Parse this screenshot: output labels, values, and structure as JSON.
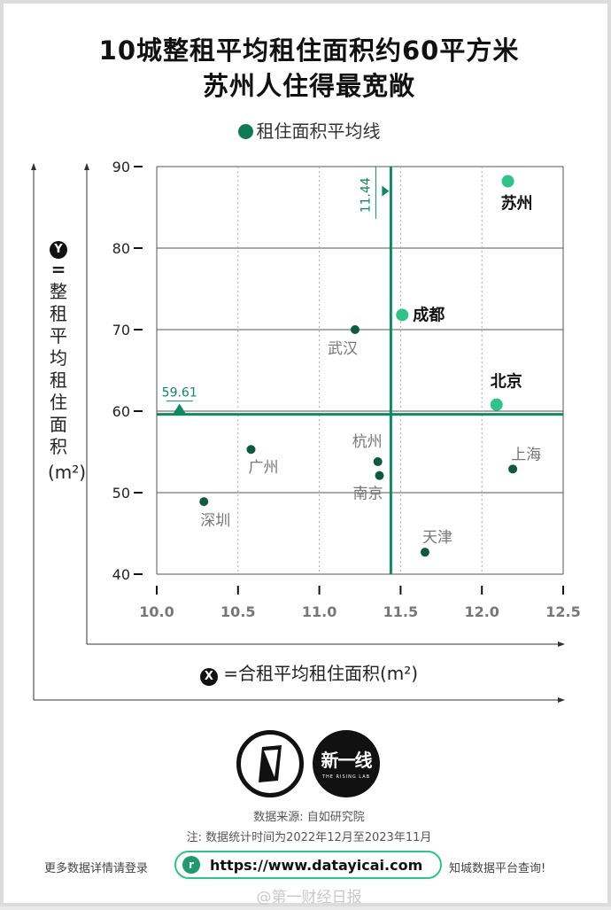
{
  "title_line1": "10城整租平均租住面积约60平方米",
  "title_line2": "苏州人住得最宽敞",
  "legend_label": "租住面积平均线",
  "y_axis": {
    "badge": "Y",
    "eq": "=",
    "label": "整租平均租住面积",
    "unit": "(m²)"
  },
  "x_axis": {
    "badge": "X",
    "label": "=合租平均租住面积(m²)"
  },
  "chart_data": {
    "type": "scatter",
    "xlim": [
      10.0,
      12.5
    ],
    "ylim": [
      40,
      90
    ],
    "x_ticks": [
      "10.0",
      "10.5",
      "11.0",
      "11.5",
      "12.0",
      "12.5"
    ],
    "y_ticks": [
      "40",
      "50",
      "60",
      "70",
      "80",
      "90"
    ],
    "grid": true,
    "avg_x": 11.44,
    "avg_y": 59.61,
    "avg_x_label": "11.44",
    "avg_y_label": "59.61",
    "points": [
      {
        "name": "苏州",
        "x": 12.16,
        "y": 88.2,
        "highlight": true
      },
      {
        "name": "成都",
        "x": 11.51,
        "y": 71.8,
        "highlight": true
      },
      {
        "name": "武汉",
        "x": 11.22,
        "y": 70.0,
        "highlight": false
      },
      {
        "name": "北京",
        "x": 12.09,
        "y": 60.8,
        "highlight": true
      },
      {
        "name": "广州",
        "x": 10.58,
        "y": 55.3,
        "highlight": false
      },
      {
        "name": "杭州",
        "x": 11.36,
        "y": 53.8,
        "highlight": false
      },
      {
        "name": "南京",
        "x": 11.37,
        "y": 52.1,
        "highlight": false
      },
      {
        "name": "上海",
        "x": 12.19,
        "y": 52.9,
        "highlight": false
      },
      {
        "name": "深圳",
        "x": 10.29,
        "y": 48.9,
        "highlight": false
      },
      {
        "name": "天津",
        "x": 11.65,
        "y": 42.7,
        "highlight": false
      }
    ],
    "colors": {
      "avg_line": "#0f8a60",
      "highlight": "#2fc38a",
      "normal": "#0d5a40"
    }
  },
  "source": "数据来源: 自如研究院",
  "note": "注: 数据统计时间为2022年12月至2023年11月",
  "footer": {
    "left": "更多数据详情请登录",
    "url": "https://www.datayicai.com",
    "right": "知城数据平台查询!",
    "url_icon": "r"
  },
  "logo2_text": "新一线",
  "logo2_sub": "THE RISING LAB",
  "watermark": "@第一财经日报"
}
